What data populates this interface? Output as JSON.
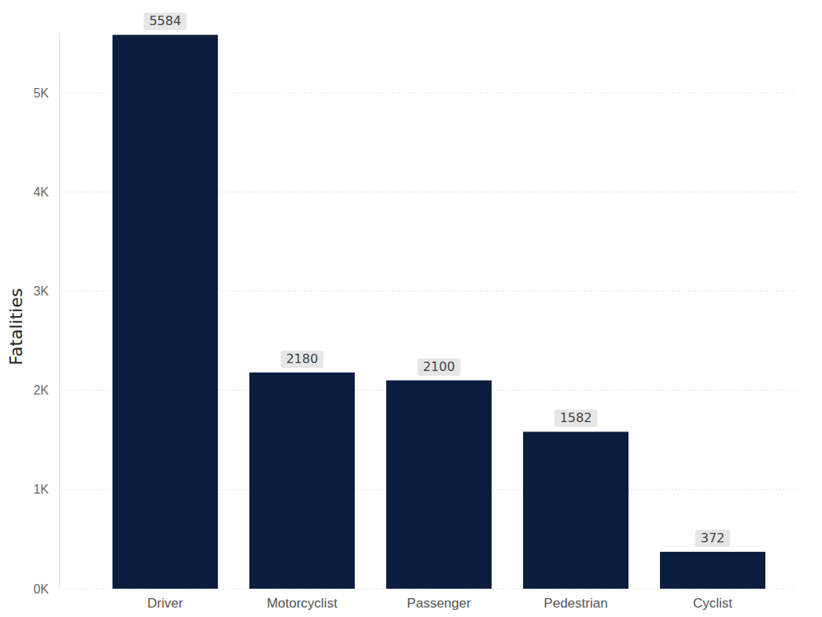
{
  "chart_data": {
    "type": "bar",
    "y_label": "Fatalities",
    "categories": [
      "Driver",
      "Motorcyclist",
      "Passenger",
      "Pedestrian",
      "Cyclist"
    ],
    "values": [
      5584,
      2180,
      2100,
      1582,
      372
    ],
    "color": "#0c1e3e",
    "ylim": [
      0,
      5600
    ],
    "yticks": [
      {
        "value": 0,
        "label": "0K"
      },
      {
        "value": 1000,
        "label": "1K"
      },
      {
        "value": 2000,
        "label": "2K"
      },
      {
        "value": 3000,
        "label": "3K"
      },
      {
        "value": 4000,
        "label": "4K"
      },
      {
        "value": 5000,
        "label": "5K"
      }
    ],
    "grid": true,
    "data_labels": true
  }
}
